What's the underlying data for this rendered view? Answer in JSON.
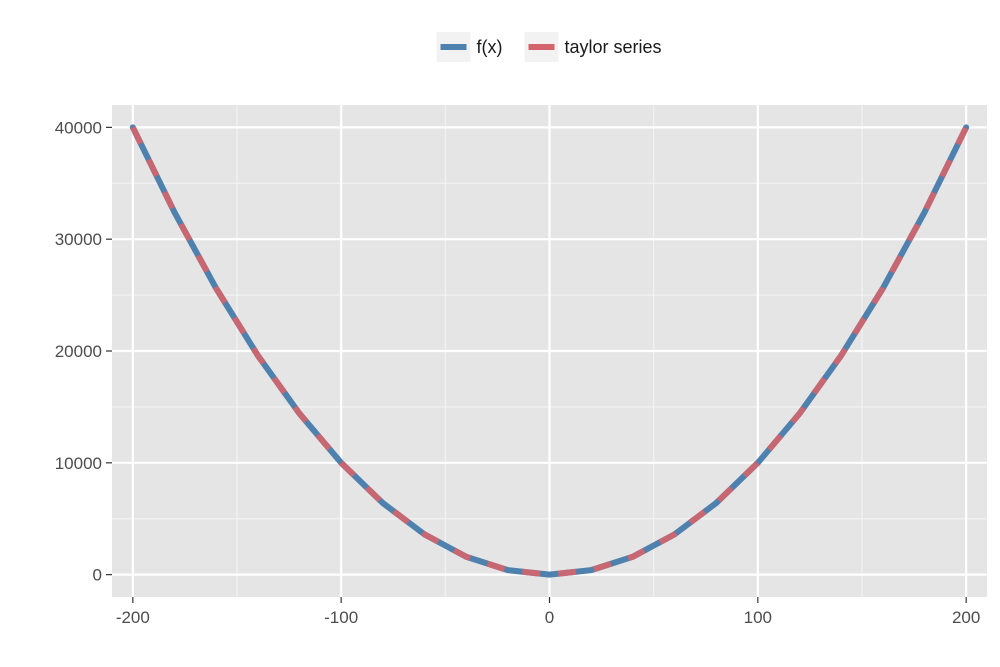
{
  "chart_data": {
    "type": "line",
    "title": "",
    "xlabel": "",
    "ylabel": "",
    "xlim": [
      -210,
      210
    ],
    "ylim": [
      -2000,
      42000
    ],
    "x_ticks": [
      -200,
      -100,
      0,
      100,
      200
    ],
    "x_tick_labels": [
      "-200",
      "-100",
      "0",
      "100",
      "200"
    ],
    "y_ticks": [
      0,
      10000,
      20000,
      30000,
      40000
    ],
    "y_tick_labels": [
      "0",
      "10000",
      "20000",
      "30000",
      "40000"
    ],
    "grid": true,
    "legend_position": "top",
    "series": [
      {
        "name": "f(x)",
        "color": "#4e81ad",
        "style": "solid",
        "x": [
          -200,
          -180,
          -160,
          -140,
          -120,
          -100,
          -80,
          -60,
          -40,
          -20,
          0,
          20,
          40,
          60,
          80,
          100,
          120,
          140,
          160,
          180,
          200
        ],
        "values": [
          40000,
          32400,
          25600,
          19600,
          14400,
          10000,
          6400,
          3600,
          1600,
          400,
          0,
          400,
          1600,
          3600,
          6400,
          10000,
          14400,
          19600,
          25600,
          32400,
          40000
        ]
      },
      {
        "name": "taylor series",
        "color": "#d4646b",
        "style": "dashed",
        "x": [
          -200,
          -180,
          -160,
          -140,
          -120,
          -100,
          -80,
          -60,
          -40,
          -20,
          0,
          20,
          40,
          60,
          80,
          100,
          120,
          140,
          160,
          180,
          200
        ],
        "values": [
          40000,
          32400,
          25600,
          19600,
          14400,
          10000,
          6400,
          3600,
          1600,
          400,
          0,
          400,
          1600,
          3600,
          6400,
          10000,
          14400,
          19600,
          25600,
          32400,
          40000
        ]
      }
    ]
  }
}
